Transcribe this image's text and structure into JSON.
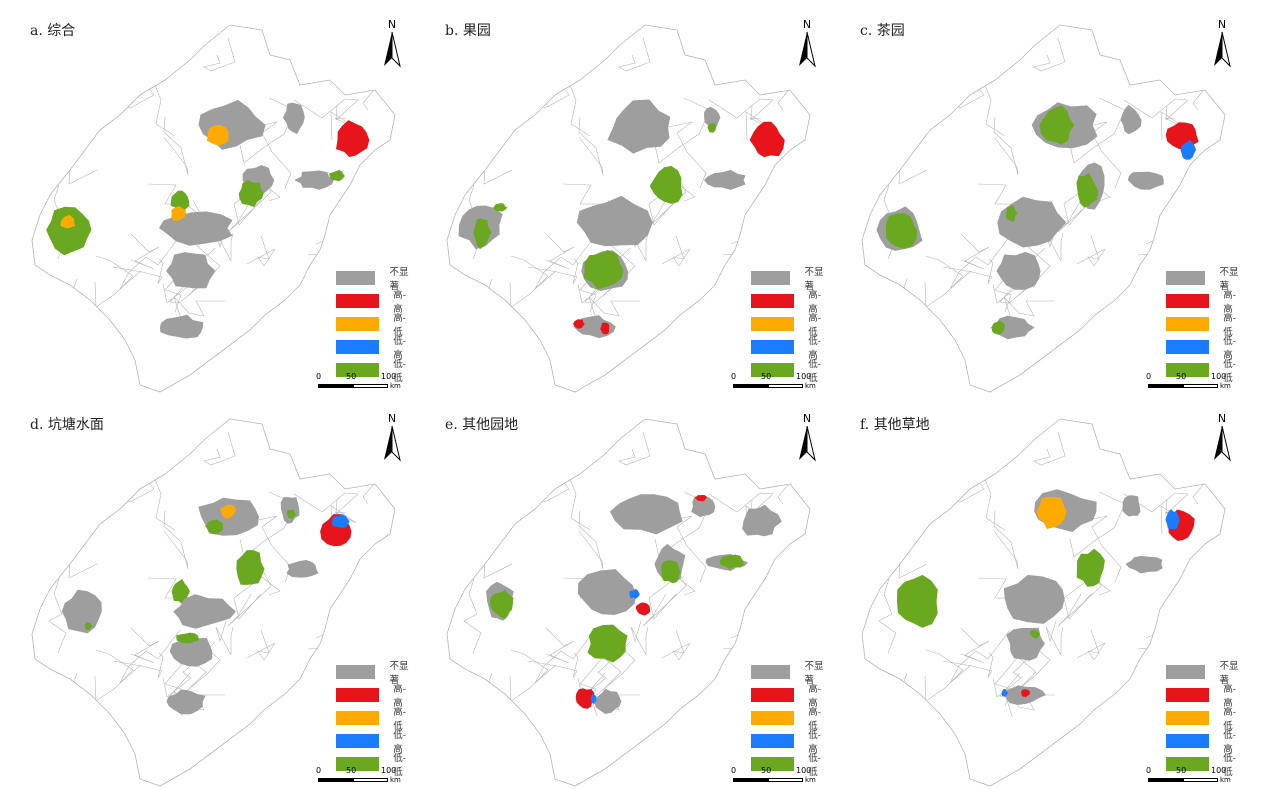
{
  "colors": {
    "not_significant": "#9e9e9e",
    "high_high": "#e8141c",
    "high_low": "#ffaa00",
    "low_high": "#1a7cff",
    "low_low": "#6aa820",
    "boundary": "#b5b5b5"
  },
  "legend": [
    {
      "key": "not_significant",
      "label": "不显著"
    },
    {
      "key": "high_high",
      "label": "高-高"
    },
    {
      "key": "high_low",
      "label": "高-低"
    },
    {
      "key": "low_high",
      "label": "低-高"
    },
    {
      "key": "low_low",
      "label": "低-低"
    }
  ],
  "north_label": "N",
  "scale": {
    "ticks": [
      "0",
      "50",
      "100"
    ],
    "unit": "km"
  },
  "panels": [
    {
      "title": "a. 综合"
    },
    {
      "title": "b. 果园"
    },
    {
      "title": "c. 茶园"
    },
    {
      "title": "d. 坑塘水面"
    },
    {
      "title": "e. 其他园地"
    },
    {
      "title": "f. 其他草地"
    }
  ]
}
